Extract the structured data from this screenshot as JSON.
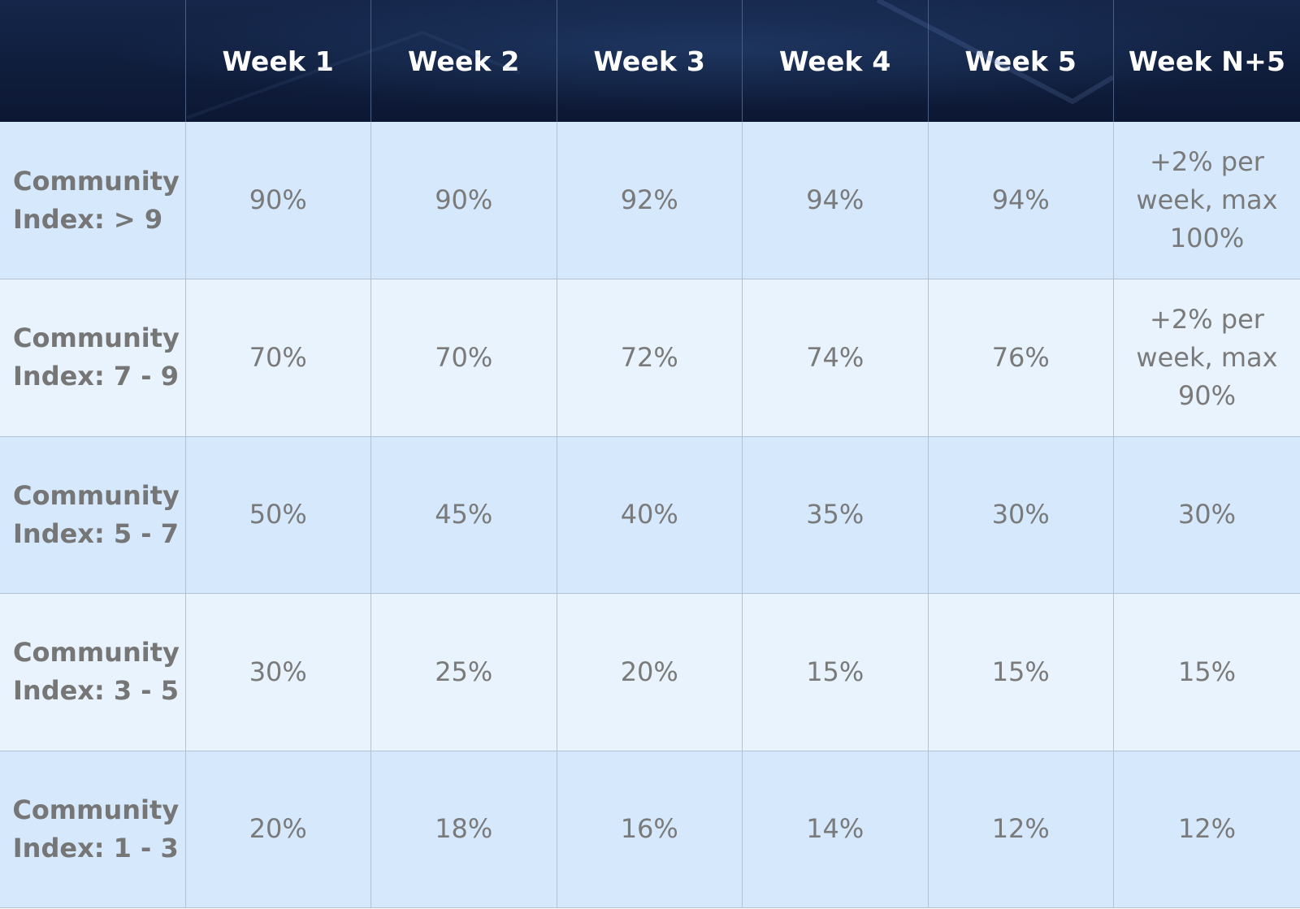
{
  "table": {
    "headers": [
      "",
      "Week 1",
      "Week 2",
      "Week 3",
      "Week 4",
      "Week 5",
      "Week N+5"
    ],
    "rows": [
      {
        "label": "Community Index: > 9",
        "cells": [
          "90%",
          "90%",
          "92%",
          "94%",
          "94%",
          "+2% per week, max 100%"
        ]
      },
      {
        "label": "Community Index: 7 - 9",
        "cells": [
          "70%",
          "70%",
          "72%",
          "74%",
          "76%",
          "+2% per week, max 90%"
        ]
      },
      {
        "label": "Community Index: 5 - 7",
        "cells": [
          "50%",
          "45%",
          "40%",
          "35%",
          "30%",
          "30%"
        ]
      },
      {
        "label": "Community Index: 3 - 5",
        "cells": [
          "30%",
          "25%",
          "20%",
          "15%",
          "15%",
          "15%"
        ]
      },
      {
        "label": "Community Index: 1 - 3",
        "cells": [
          "20%",
          "18%",
          "16%",
          "14%",
          "12%",
          "12%"
        ]
      }
    ]
  },
  "colors": {
    "header_bg": "#0f1d3b",
    "header_text": "#ffffff",
    "row_odd_bg": "#d5e8fc",
    "row_even_bg": "#e8f3fd",
    "cell_text": "#7a7a7a",
    "grid_line": "#b3c1d0"
  }
}
